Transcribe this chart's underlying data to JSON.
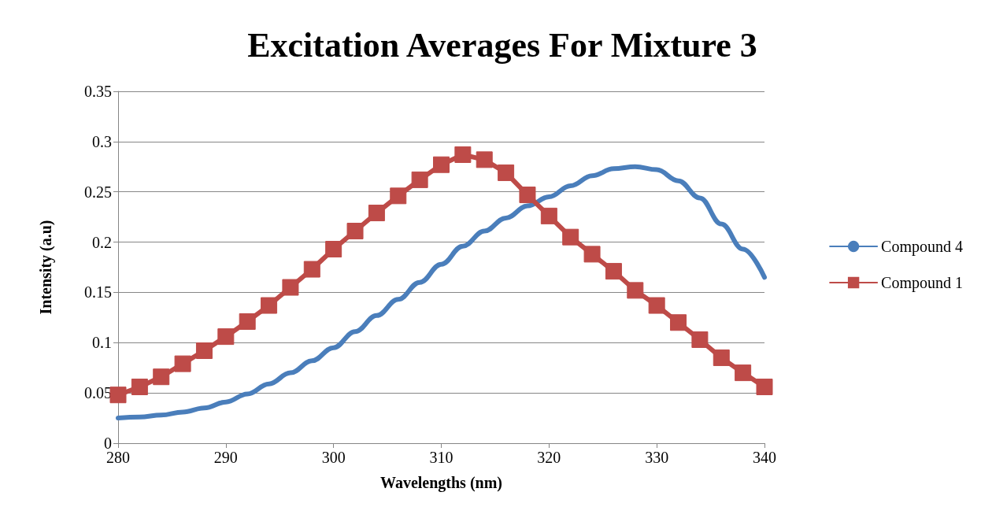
{
  "chart_data": {
    "type": "line",
    "title": "Excitation Averages For Mixture 3",
    "xlabel": "Wavelengths (nm)",
    "ylabel": "Intensity (a.u)",
    "xlim": [
      280,
      340
    ],
    "xticks": [
      280,
      290,
      300,
      310,
      320,
      330,
      340
    ],
    "ylim": [
      0,
      0.35
    ],
    "yticks": [
      0,
      0.05,
      0.1,
      0.15,
      0.2,
      0.25,
      0.3,
      0.35
    ],
    "grid": "y",
    "legend": "right",
    "line_style": "solid",
    "series": [
      {
        "name": "Compound 4",
        "color": "#4a7ebb",
        "marker": "none",
        "x": [
          280,
          282,
          284,
          286,
          288,
          290,
          292,
          294,
          296,
          298,
          300,
          302,
          304,
          306,
          308,
          310,
          312,
          314,
          316,
          318,
          320,
          322,
          324,
          326,
          328,
          330,
          332,
          334,
          336,
          338,
          340
        ],
        "values": [
          0.025,
          0.026,
          0.028,
          0.031,
          0.035,
          0.041,
          0.049,
          0.059,
          0.07,
          0.082,
          0.095,
          0.111,
          0.127,
          0.143,
          0.16,
          0.178,
          0.196,
          0.211,
          0.224,
          0.236,
          0.245,
          0.256,
          0.266,
          0.273,
          0.275,
          0.272,
          0.261,
          0.244,
          0.218,
          0.193,
          0.165
        ]
      },
      {
        "name": "Compound 1",
        "color": "#be4b48",
        "marker": "square",
        "x": [
          280,
          282,
          284,
          286,
          288,
          290,
          292,
          294,
          296,
          298,
          300,
          302,
          304,
          306,
          308,
          310,
          312,
          314,
          316,
          318,
          320,
          322,
          324,
          326,
          328,
          330,
          332,
          334,
          336,
          338,
          340
        ],
        "values": [
          0.048,
          0.056,
          0.066,
          0.079,
          0.092,
          0.106,
          0.121,
          0.137,
          0.155,
          0.173,
          0.193,
          0.211,
          0.229,
          0.246,
          0.262,
          0.277,
          0.287,
          0.282,
          0.269,
          0.247,
          0.226,
          0.205,
          0.188,
          0.171,
          0.152,
          0.137,
          0.12,
          0.103,
          0.085,
          0.07,
          0.056
        ]
      }
    ]
  }
}
